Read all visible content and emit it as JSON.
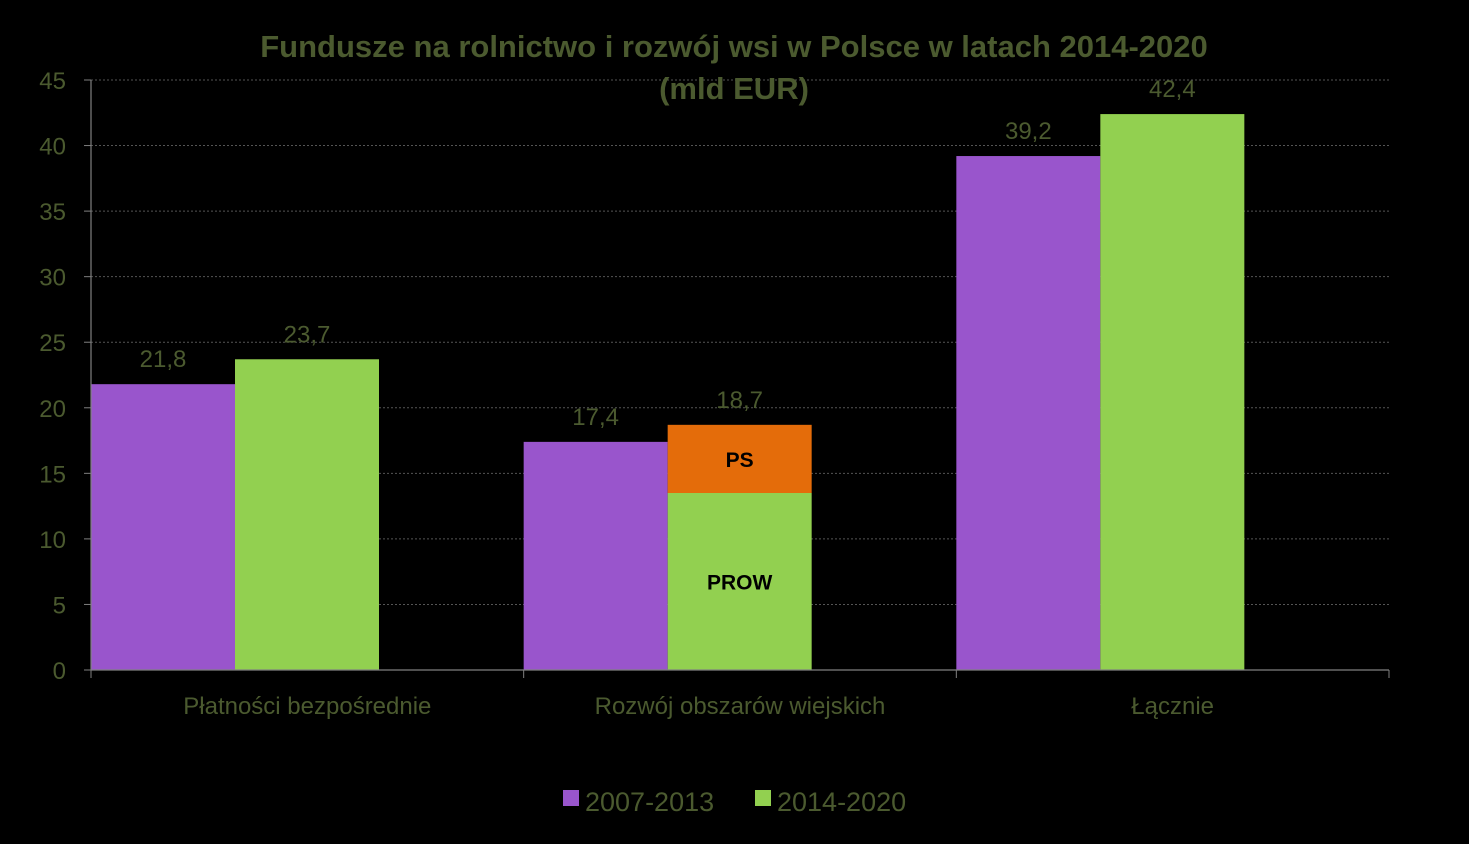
{
  "chart_data": {
    "type": "bar",
    "title": "Fundusze  na rolnictwo i rozwój wsi w Polsce  w latach 2014-2020",
    "subtitle": "(mld EUR)",
    "categories": [
      "Płatności bezpośrednie",
      "Rozwój obszarów wiejskich",
      "Łącznie"
    ],
    "series": [
      {
        "name": "2007-2013",
        "values": [
          21.8,
          17.4,
          39.2
        ],
        "labels": [
          "21,8",
          "17,4",
          "39,2"
        ],
        "color": "#9955cc"
      },
      {
        "name": "2014-2020",
        "values": [
          23.7,
          18.7,
          42.4
        ],
        "labels": [
          "23,7",
          "18,7",
          "42,4"
        ],
        "color": "#92d050"
      }
    ],
    "stacked_segments": {
      "category": "Rozwój obszarów wiejskich",
      "series": "2014-2020",
      "segments": [
        {
          "label": "PROW",
          "value": 13.5,
          "color": "#92d050"
        },
        {
          "label": "PS",
          "value": 5.2,
          "color": "#e46c0a"
        }
      ]
    },
    "yticks": [
      "0",
      "5",
      "10",
      "15",
      "20",
      "25",
      "30",
      "35",
      "40",
      "45"
    ],
    "ylim": [
      0,
      45
    ],
    "grid": true,
    "legend": "bottom",
    "colors": {
      "background": "#000000",
      "text": "#4b5a2f",
      "gridline": "#555555",
      "axis": "#808080"
    }
  }
}
